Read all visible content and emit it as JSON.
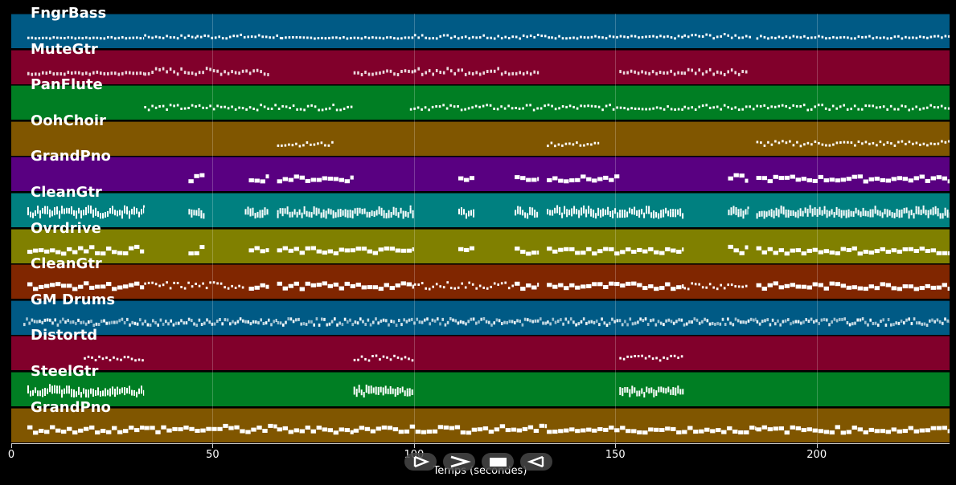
{
  "colors": {
    "background": "#000000",
    "note": "#ffffff",
    "track_palette": [
      "#005a85",
      "#81002b",
      "#007e23",
      "#805600",
      "#590081",
      "#008080",
      "#808000",
      "#802600"
    ]
  },
  "chart_data": {
    "type": "piano-roll",
    "xlabel": "Temps (secondes)",
    "xlim": [
      0,
      233
    ],
    "xticks": [
      0,
      50,
      100,
      150,
      200
    ],
    "grid": true,
    "tracks": [
      {
        "name": "FngrBass",
        "color": "#005a85",
        "segments": [
          [
            4,
            33,
            "small",
            0.1
          ],
          [
            33,
            46,
            "small",
            0.25
          ],
          [
            46,
            67,
            "small",
            0.3
          ],
          [
            67,
            100,
            "small",
            0.1
          ],
          [
            100,
            134,
            "small",
            0.3
          ],
          [
            134,
            167,
            "small",
            0.2
          ],
          [
            167,
            184,
            "small",
            0.35
          ],
          [
            185,
            233,
            "small",
            0.2
          ]
        ]
      },
      {
        "name": "MuteGtr",
        "color": "#81002b",
        "segments": [
          [
            4,
            33,
            "dots",
            0.2
          ],
          [
            33,
            64,
            "dots",
            0.5
          ],
          [
            85,
            100,
            "dots",
            0.3
          ],
          [
            100,
            131,
            "dots",
            0.5
          ],
          [
            151,
            167,
            "dots",
            0.3
          ],
          [
            167,
            183,
            "dots",
            0.5
          ]
        ]
      },
      {
        "name": "PanFlute",
        "color": "#007e23",
        "segments": [
          [
            33,
            85,
            "small",
            0.4
          ],
          [
            99,
            167,
            "small",
            0.4
          ],
          [
            167,
            233,
            "small",
            0.4
          ]
        ]
      },
      {
        "name": "OohChoir",
        "color": "#805600",
        "segments": [
          [
            66,
            80,
            "small",
            0.3
          ],
          [
            133,
            146,
            "small",
            0.3
          ],
          [
            185,
            233,
            "small",
            0.4
          ]
        ]
      },
      {
        "name": "GrandPno",
        "color": "#590081",
        "segments": [
          [
            44,
            48,
            "block",
            0.5
          ],
          [
            59,
            64,
            "block",
            0.5
          ],
          [
            66,
            85,
            "block",
            0.4
          ],
          [
            111,
            115,
            "block",
            0.5
          ],
          [
            125,
            131,
            "block",
            0.5
          ],
          [
            133,
            151,
            "block",
            0.4
          ],
          [
            178,
            183,
            "block",
            0.5
          ],
          [
            185,
            233,
            "block",
            0.4
          ]
        ]
      },
      {
        "name": "CleanGtr",
        "color": "#008080",
        "segments": [
          [
            4,
            33,
            "dense",
            0.45
          ],
          [
            44,
            48,
            "dense",
            0.45
          ],
          [
            58,
            64,
            "dense",
            0.4
          ],
          [
            66,
            100,
            "dense",
            0.45
          ],
          [
            111,
            115,
            "dense",
            0.45
          ],
          [
            125,
            131,
            "dense",
            0.4
          ],
          [
            133,
            167,
            "dense",
            0.45
          ],
          [
            178,
            183,
            "dense",
            0.4
          ],
          [
            185,
            233,
            "dense",
            0.45
          ]
        ]
      },
      {
        "name": "Ovrdrive",
        "color": "#808000",
        "segments": [
          [
            4,
            33,
            "block",
            0.55
          ],
          [
            44,
            48,
            "block",
            0.55
          ],
          [
            59,
            64,
            "block",
            0.55
          ],
          [
            66,
            100,
            "block",
            0.45
          ],
          [
            111,
            115,
            "block",
            0.55
          ],
          [
            125,
            131,
            "block",
            0.55
          ],
          [
            133,
            167,
            "block",
            0.45
          ],
          [
            178,
            183,
            "block",
            0.55
          ],
          [
            185,
            233,
            "block",
            0.45
          ]
        ]
      },
      {
        "name": "CleanGtr",
        "color": "#802600",
        "segments": [
          [
            4,
            33,
            "block",
            0.45
          ],
          [
            33,
            58,
            "small",
            0.55
          ],
          [
            59,
            64,
            "block",
            0.45
          ],
          [
            66,
            100,
            "block",
            0.45
          ],
          [
            100,
            125,
            "small",
            0.55
          ],
          [
            125,
            131,
            "block",
            0.45
          ],
          [
            133,
            167,
            "block",
            0.45
          ],
          [
            167,
            183,
            "small",
            0.55
          ],
          [
            185,
            233,
            "block",
            0.45
          ]
        ]
      },
      {
        "name": "GM Drums",
        "color": "#005a85",
        "segments": [
          [
            3,
            66,
            "drum",
            0.5
          ],
          [
            66,
            133,
            "drum",
            0.5
          ],
          [
            133,
            185,
            "drum",
            0.5
          ],
          [
            185,
            233,
            "drum",
            0.5
          ]
        ]
      },
      {
        "name": "Distortd",
        "color": "#81002b",
        "segments": [
          [
            18,
            33,
            "small",
            0.4
          ],
          [
            85,
            100,
            "small",
            0.4
          ],
          [
            151,
            167,
            "small",
            0.4
          ]
        ]
      },
      {
        "name": "SteelGtr",
        "color": "#007e23",
        "segments": [
          [
            4,
            33,
            "dense",
            0.45
          ],
          [
            85,
            100,
            "dense",
            0.45
          ],
          [
            151,
            167,
            "dense",
            0.45
          ]
        ]
      },
      {
        "name": "GrandPno",
        "color": "#805600",
        "segments": [
          [
            4,
            33,
            "block",
            0.5
          ],
          [
            33,
            66,
            "block",
            0.55
          ],
          [
            66,
            85,
            "block",
            0.45
          ],
          [
            85,
            133,
            "block",
            0.55
          ],
          [
            133,
            185,
            "block",
            0.45
          ],
          [
            185,
            233,
            "block",
            0.45
          ]
        ]
      }
    ]
  },
  "transport": {
    "buttons": [
      {
        "name": "play-outline-button",
        "icon": "play-outline-icon"
      },
      {
        "name": "forward-button",
        "icon": "chevron-right-icon"
      },
      {
        "name": "stop-button",
        "icon": "stop-icon"
      },
      {
        "name": "rewind-button",
        "icon": "rewind-icon"
      }
    ]
  }
}
